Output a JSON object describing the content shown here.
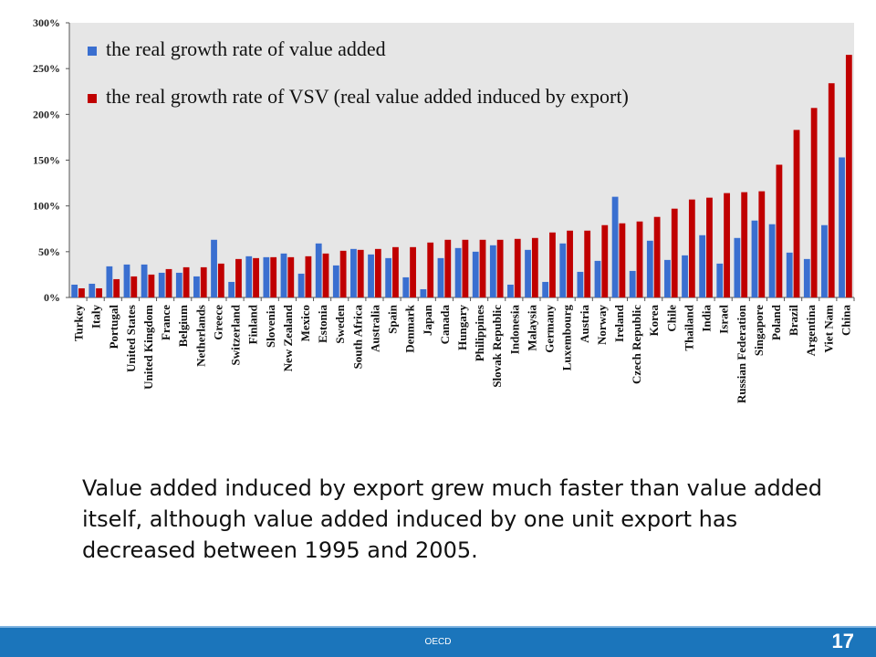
{
  "chart_data": {
    "type": "bar",
    "categories": [
      "Turkey",
      "Italy",
      "Portugal",
      "United States",
      "United Kingdom",
      "France",
      "Belgium",
      "Netherlands",
      "Greece",
      "Switzerland",
      "Finland",
      "Slovenia",
      "New Zealand",
      "Mexico",
      "Estonia",
      "Sweden",
      "South Africa",
      "Australia",
      "Spain",
      "Denmark",
      "Japan",
      "Canada",
      "Hungary",
      "Philippines",
      "Slovak Republic",
      "Indonesia",
      "Malaysia",
      "Germany",
      "Luxembourg",
      "Austria",
      "Norway",
      "Ireland",
      "Czech Republic",
      "Korea",
      "Chile",
      "Thailand",
      "India",
      "Israel",
      "Russian Federation",
      "Singapore",
      "Poland",
      "Brazil",
      "Argentina",
      "Viet Nam",
      "China"
    ],
    "series": [
      {
        "name": "the real growth rate of value added",
        "color": "#3a6fd0",
        "values": [
          14,
          15,
          34,
          36,
          36,
          27,
          27,
          23,
          63,
          17,
          45,
          44,
          48,
          26,
          59,
          35,
          53,
          47,
          43,
          22,
          9,
          43,
          54,
          50,
          57,
          14,
          52,
          17,
          59,
          28,
          40,
          110,
          29,
          62,
          41,
          46,
          68,
          37,
          65,
          84,
          80,
          49,
          42,
          79,
          153
        ]
      },
      {
        "name": "the real growth rate of VSV (real value added induced by export)",
        "color": "#c00000",
        "values": [
          10,
          10,
          20,
          23,
          25,
          31,
          33,
          33,
          37,
          42,
          43,
          44,
          44,
          45,
          48,
          51,
          52,
          53,
          55,
          55,
          60,
          63,
          63,
          63,
          63,
          64,
          65,
          71,
          73,
          73,
          79,
          81,
          83,
          88,
          97,
          107,
          109,
          114,
          115,
          116,
          145,
          183,
          207,
          234,
          265
        ]
      }
    ],
    "yticks": [
      "0%",
      "50%",
      "100%",
      "150%",
      "200%",
      "250%",
      "300%"
    ],
    "ylim": [
      0,
      300
    ],
    "grid": false,
    "legend_position": "top-left"
  },
  "caption": "Value added induced by export grew much faster than value added itself, although value added induced by one unit export has decreased between 1995 and 2005.",
  "footer": {
    "org": "OECD",
    "page": "17"
  }
}
